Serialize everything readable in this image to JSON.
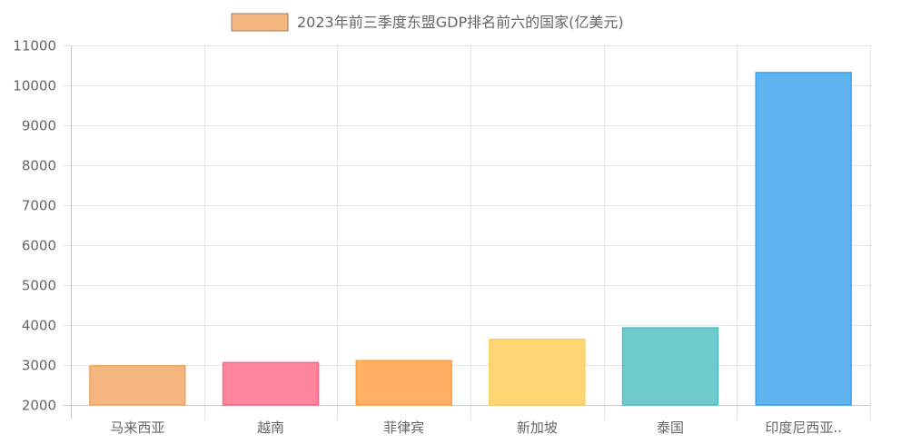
{
  "chart_data": {
    "type": "bar",
    "categories": [
      "马来西亚",
      "越南",
      "菲律宾",
      "新加坡",
      "泰国",
      "印度尼西亚.."
    ],
    "series": [
      {
        "name": "2023年前三季度东盟GDP排名前六的国家(亿美元)",
        "values": [
          2980,
          3060,
          3110,
          3640,
          3930,
          10320
        ]
      }
    ],
    "ylim": [
      2000,
      11000
    ],
    "yticks": [
      2000,
      3000,
      4000,
      5000,
      6000,
      7000,
      8000,
      9000,
      10000,
      11000
    ],
    "grid": true,
    "legend_position": "top-center",
    "bar_fill_colors": [
      "#f5b57e",
      "#ff849d",
      "#ffb062",
      "#ffd673",
      "#6fcbcb",
      "#5fb3ef"
    ],
    "bar_border_colors": [
      "#f2a35c",
      "#ff6384",
      "#ff9f40",
      "#ffcd56",
      "#4bc0c0",
      "#36a2eb"
    ],
    "legend_swatch": {
      "fill": "#f5b57e",
      "border": "#a27a58"
    }
  }
}
